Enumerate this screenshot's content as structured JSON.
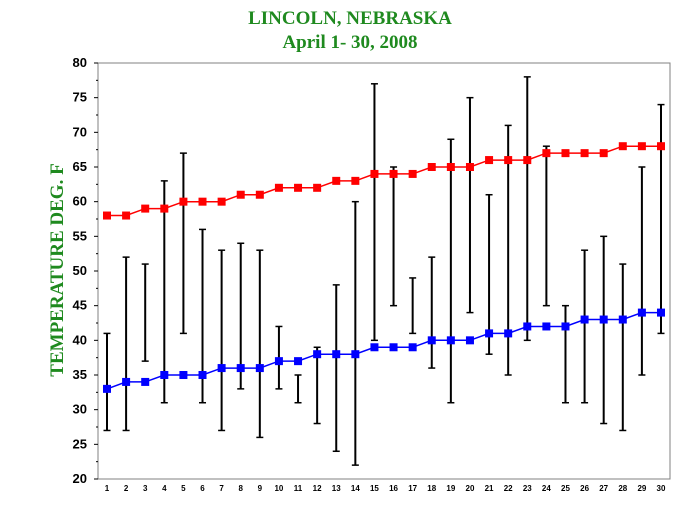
{
  "chart_data": {
    "type": "line",
    "title": "LINCOLN, NEBRASKA",
    "subtitle": "April 1- 30,  2008",
    "ylabel": "TEMPERATURE DEG. F",
    "xlabel": "",
    "ylim": [
      20,
      80
    ],
    "yticks": [
      20,
      25,
      30,
      35,
      40,
      45,
      50,
      55,
      60,
      65,
      70,
      75,
      80
    ],
    "categories": [
      "1",
      "2",
      "3",
      "4",
      "5",
      "6",
      "7",
      "8",
      "9",
      "10",
      "11",
      "12",
      "13",
      "14",
      "15",
      "16",
      "17",
      "18",
      "19",
      "20",
      "21",
      "22",
      "23",
      "24",
      "25",
      "26",
      "27",
      "28",
      "29",
      "30"
    ],
    "series": [
      {
        "color": "#ff0000",
        "values": [
          58,
          58,
          59,
          59,
          60,
          60,
          60,
          61,
          61,
          62,
          62,
          62,
          63,
          63,
          64,
          64,
          64,
          65,
          65,
          65,
          66,
          66,
          66,
          67,
          67,
          67,
          67,
          68,
          68,
          68
        ]
      },
      {
        "color": "#0000ff",
        "values": [
          33,
          34,
          34,
          35,
          35,
          35,
          36,
          36,
          36,
          37,
          37,
          38,
          38,
          38,
          39,
          39,
          39,
          40,
          40,
          40,
          41,
          41,
          42,
          42,
          42,
          43,
          43,
          43,
          44,
          44
        ]
      }
    ],
    "ranges": {
      "color": "#000000",
      "low": [
        27,
        27,
        37,
        31,
        41,
        31,
        27,
        33,
        26,
        33,
        31,
        28,
        24,
        22,
        40,
        45,
        41,
        36,
        31,
        44,
        38,
        35,
        40,
        45,
        31,
        31,
        28,
        27,
        35,
        41
      ],
      "high": [
        41,
        52,
        51,
        63,
        67,
        56,
        53,
        54,
        53,
        42,
        35,
        39,
        48,
        60,
        77,
        65,
        49,
        52,
        69,
        75,
        61,
        71,
        78,
        68,
        45,
        53,
        55,
        51,
        65,
        74
      ]
    },
    "grid": false,
    "legend": "none"
  }
}
